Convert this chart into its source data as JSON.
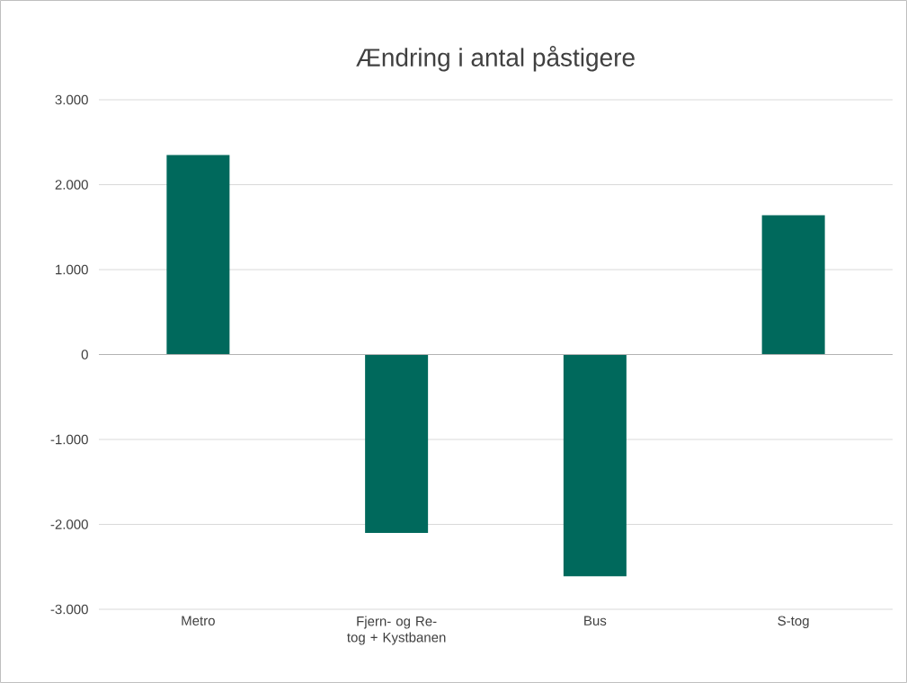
{
  "chart_data": {
    "type": "bar",
    "title": "Ændring i antal påstigere",
    "categories": [
      "Metro",
      "Fjern- og Re-tog + Kystbanen",
      "Bus",
      "S-tog"
    ],
    "values": [
      2350,
      -2100,
      -2610,
      1640
    ],
    "color": "#00695c",
    "ylim": [
      -3000,
      3000
    ],
    "yticks": [
      {
        "value": -3000,
        "label": "-3.000"
      },
      {
        "value": -2000,
        "label": "-2.000"
      },
      {
        "value": -1000,
        "label": "-1.000"
      },
      0,
      {
        "value": 1000,
        "label": "1.000"
      },
      {
        "value": 2000,
        "label": "2.000"
      },
      {
        "value": 3000,
        "label": "3.000"
      }
    ],
    "grid": "y"
  }
}
